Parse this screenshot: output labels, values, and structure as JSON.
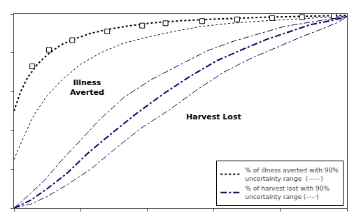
{
  "chart_data": {
    "type": "line",
    "series": [
      {
        "name": "% of illness averted with 90%\nuncertainty range  (——)",
        "color": "#000000",
        "line_style": "dotted",
        "x": [
          0.0,
          0.02,
          0.04,
          0.07,
          0.1,
          0.14,
          0.18,
          0.23,
          0.28,
          0.35,
          0.42,
          0.5,
          0.58,
          0.66,
          0.75,
          0.85,
          0.95,
          1.0
        ],
        "values": [
          0.5,
          0.6,
          0.67,
          0.74,
          0.79,
          0.84,
          0.87,
          0.9,
          0.92,
          0.94,
          0.955,
          0.965,
          0.972,
          0.978,
          0.983,
          0.987,
          0.991,
          0.993
        ]
      },
      {
        "color": "#000000",
        "line_style": "dotted",
        "x": [
          0.0,
          0.03,
          0.06,
          0.1,
          0.15,
          0.2,
          0.26,
          0.33,
          0.4,
          0.48,
          0.56,
          0.65,
          0.74,
          0.83,
          0.92,
          1.0
        ],
        "values": [
          0.25,
          0.37,
          0.48,
          0.58,
          0.67,
          0.74,
          0.8,
          0.85,
          0.88,
          0.91,
          0.935,
          0.952,
          0.963,
          0.973,
          0.981,
          0.988
        ]
      },
      {
        "name": "% of harvest lost with 90%\nuncertainty range (–·–·)",
        "color": "#00008B",
        "line_style": "dashdot",
        "x": [
          0.0,
          0.05,
          0.1,
          0.16,
          0.22,
          0.29,
          0.37,
          0.45,
          0.53,
          0.61,
          0.69,
          0.76,
          0.83,
          0.89,
          0.95,
          1.0
        ],
        "values": [
          0.0,
          0.04,
          0.1,
          0.18,
          0.28,
          0.38,
          0.49,
          0.59,
          0.68,
          0.76,
          0.82,
          0.87,
          0.91,
          0.945,
          0.965,
          0.985
        ]
      },
      {
        "color": "#00008B",
        "line_style": "dashdot",
        "x": [
          0.0,
          0.05,
          0.1,
          0.16,
          0.23,
          0.3,
          0.38,
          0.47,
          0.55,
          0.63,
          0.71,
          0.79,
          0.86,
          0.92,
          0.97,
          1.0
        ],
        "values": [
          0.0,
          0.02,
          0.06,
          0.12,
          0.2,
          0.3,
          0.41,
          0.51,
          0.61,
          0.7,
          0.77,
          0.83,
          0.88,
          0.92,
          0.955,
          0.985
        ]
      },
      {
        "color": "#00008B",
        "line_style": "dashdot",
        "x": [
          0.0,
          0.04,
          0.09,
          0.14,
          0.2,
          0.26,
          0.33,
          0.41,
          0.5,
          0.58,
          0.66,
          0.74,
          0.81,
          0.88,
          0.94,
          1.0
        ],
        "values": [
          0.0,
          0.06,
          0.14,
          0.24,
          0.35,
          0.46,
          0.57,
          0.66,
          0.74,
          0.81,
          0.86,
          0.9,
          0.935,
          0.955,
          0.972,
          0.987
        ]
      },
      {
        "type": "scatter",
        "marker": "square",
        "color": "#000000",
        "x": [
          0.055,
          0.105,
          0.175,
          0.28,
          0.385,
          0.455,
          0.565,
          0.67,
          0.775,
          0.865,
          0.96
        ],
        "values": [
          0.73,
          0.815,
          0.865,
          0.91,
          0.94,
          0.952,
          0.963,
          0.972,
          0.979,
          0.984,
          0.989
        ]
      }
    ],
    "annotations": [
      "Illness\nAverted",
      "Harvest Lost"
    ],
    "xlim": [
      0.0,
      1.0
    ],
    "ylim": [
      0.0,
      1.0
    ],
    "xticks": [
      0,
      0.2,
      0.4,
      0.6,
      0.8,
      1
    ],
    "yticks": [
      0,
      0.2,
      0.4,
      0.6,
      0.8,
      1
    ],
    "tick_labels": false,
    "grid": false,
    "legend": "lower right"
  }
}
